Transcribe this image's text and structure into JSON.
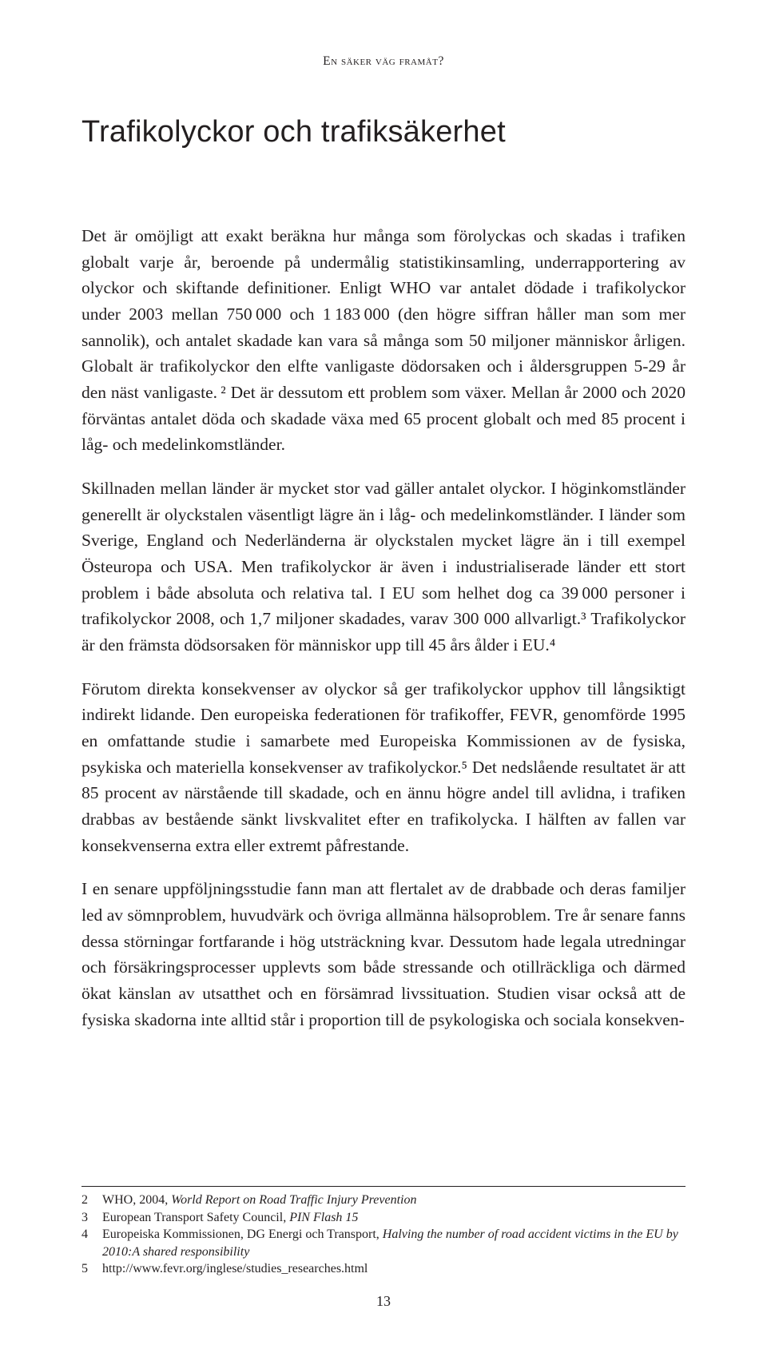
{
  "running_head": "en säker väg framåt?",
  "chapter_title": "Trafikolyckor och trafiksäkerhet",
  "paragraphs": {
    "p1": "Det är omöjligt att exakt beräkna hur många som förolyckas och skadas i trafiken globalt varje år, beroende på undermålig statistikinsamling, underrapportering av olyckor och skiftande definitioner. Enligt WHO var antalet dödade i trafikolyckor under 2003 mellan 750 000 och 1 183 000 (den högre siffran håller man som mer sannolik), och antalet skadade kan vara så många som 50 miljoner människor årligen. Globalt är trafikolyckor den elfte vanligaste dödorsaken och i åldersgruppen 5-29 år den näst vanligaste. ² Det är dessutom ett problem som växer. Mellan år 2000 och 2020 förväntas antalet döda och skadade växa med 65 procent globalt och med 85 procent i låg- och medelinkomstländer.",
    "p2": "Skillnaden mellan länder är mycket stor vad gäller antalet olyckor. I höginkomstländer generellt är olyckstalen väsentligt lägre än i låg- och medelinkomstländer. I länder som Sverige, England och Nederländerna är olyckstalen mycket lägre än i till exempel Östeuropa och USA. Men trafikolyckor är även i industrialiserade länder ett stort problem i både absoluta och relativa tal. I EU som helhet dog ca 39 000 personer i trafikolyckor 2008, och 1,7 miljoner skadades, varav 300 000 allvarligt.³ Trafikolyckor är den främsta dödsorsaken för människor upp till 45 års ålder i EU.⁴",
    "p3": "Förutom direkta konsekvenser av olyckor så ger trafikolyckor upphov till långsiktigt indirekt lidande. Den europeiska federationen för trafikoffer, FEVR, genomförde 1995 en omfattande studie i samarbete med Europeiska Kommissionen av de fysiska, psykiska och materiella konsekvenser av trafikolyckor.⁵ Det nedslående resultatet är att 85 procent av närstående till skadade, och en ännu högre andel till avlidna, i trafiken drabbas av bestående sänkt livskvalitet efter en trafikolycka. I hälften av fallen var konsekvenserna extra eller extremt påfrestande.",
    "p4": "I en senare uppföljningsstudie fann man att flertalet av de drabbade och deras familjer led av sömnproblem, huvudvärk och övriga allmänna hälsoproblem. Tre år senare fanns dessa störningar fortfarande i hög utsträckning kvar. Dessutom hade legala utredningar och försäkringsprocesser upplevts som både stressande och otillräckliga och därmed ökat känslan av utsatthet och en försämrad livssituation. Studien visar också att de fysiska skadorna inte alltid står i proportion till de psykologiska och sociala konsekven-"
  },
  "footnotes": {
    "f2_num": "2",
    "f2_a": "WHO, 2004, ",
    "f2_b": "World Report on Road Traffic Injury Prevention",
    "f3_num": "3",
    "f3": "European Transport Safety Council, ",
    "f3_b": "PIN Flash 15",
    "f4_num": "4",
    "f4_a": "Europeiska Kommissionen, DG Energi och Transport, ",
    "f4_b": "Halving the number of road accident victims in the EU by 2010:A shared responsibility",
    "f5_num": "5",
    "f5": "http://www.fevr.org/inglese/studies_researches.html"
  },
  "page_number": "13"
}
